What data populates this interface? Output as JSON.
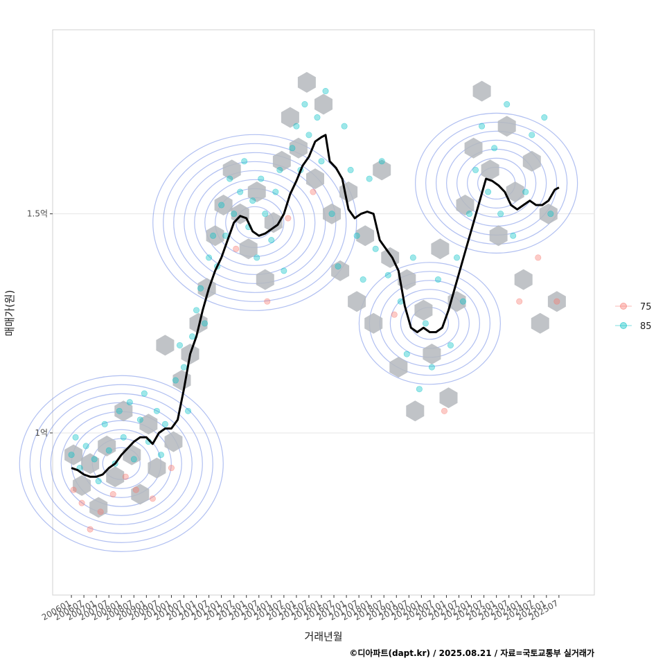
{
  "chart_data": {
    "type": "scatter",
    "xlabel": "거래년월",
    "ylabel": "매매가(원)",
    "caption": "©디아파트(dapt.kr) / 2025.08.21 / 자료=국토교통부 실거래가",
    "x_start": "2006-01",
    "x_end": "2025-07",
    "xlim": [
      "2005-04",
      "2026-12"
    ],
    "ylim": [
      0.63,
      1.92
    ],
    "y_unit": "억",
    "y_ticks": [
      {
        "value": 1.0,
        "label": "1억"
      },
      {
        "value": 1.5,
        "label": "1.5억"
      }
    ],
    "x_ticks": [
      "200601",
      "200607",
      "200701",
      "200707",
      "200801",
      "200807",
      "200901",
      "200907",
      "201001",
      "201007",
      "201101",
      "201107",
      "201201",
      "201207",
      "201301",
      "201307",
      "201401",
      "201407",
      "201501",
      "201507",
      "201601",
      "201607",
      "201701",
      "201707",
      "201801",
      "201807",
      "201901",
      "201907",
      "202001",
      "202007",
      "202101",
      "202107",
      "202201",
      "202207",
      "202301",
      "202307",
      "202401",
      "202407",
      "202501",
      "202507"
    ],
    "grid": true,
    "legend_position": "right",
    "legend": [
      {
        "name": "75",
        "color": "#F8766D"
      },
      {
        "name": "85",
        "color": "#00BFC4"
      }
    ],
    "colors": {
      "hexbin": "#b5b9bd",
      "contour": "#6f8be6",
      "trend_line": "#000000",
      "panel_border": "#d0d0d0",
      "grid": "#e6e6e6"
    },
    "trend_line": [
      [
        "2006-01",
        0.92
      ],
      [
        "2006-04",
        0.915
      ],
      [
        "2006-07",
        0.905
      ],
      [
        "2006-10",
        0.9
      ],
      [
        "2007-01",
        0.9
      ],
      [
        "2007-04",
        0.905
      ],
      [
        "2007-07",
        0.92
      ],
      [
        "2007-10",
        0.93
      ],
      [
        "2008-01",
        0.95
      ],
      [
        "2008-04",
        0.965
      ],
      [
        "2008-07",
        0.98
      ],
      [
        "2008-10",
        0.99
      ],
      [
        "2009-01",
        0.99
      ],
      [
        "2009-04",
        0.975
      ],
      [
        "2009-07",
        1.0
      ],
      [
        "2009-10",
        1.01
      ],
      [
        "2010-01",
        1.01
      ],
      [
        "2010-04",
        1.03
      ],
      [
        "2010-07",
        1.1
      ],
      [
        "2010-10",
        1.18
      ],
      [
        "2011-01",
        1.22
      ],
      [
        "2011-04",
        1.28
      ],
      [
        "2011-07",
        1.33
      ],
      [
        "2011-10",
        1.37
      ],
      [
        "2012-01",
        1.4
      ],
      [
        "2012-04",
        1.44
      ],
      [
        "2012-07",
        1.48
      ],
      [
        "2012-10",
        1.495
      ],
      [
        "2013-01",
        1.49
      ],
      [
        "2013-04",
        1.46
      ],
      [
        "2013-07",
        1.45
      ],
      [
        "2013-10",
        1.455
      ],
      [
        "2014-01",
        1.465
      ],
      [
        "2014-04",
        1.475
      ],
      [
        "2014-07",
        1.5
      ],
      [
        "2014-10",
        1.545
      ],
      [
        "2015-01",
        1.575
      ],
      [
        "2015-04",
        1.61
      ],
      [
        "2015-07",
        1.63
      ],
      [
        "2015-10",
        1.665
      ],
      [
        "2016-01",
        1.675
      ],
      [
        "2016-03",
        1.68
      ],
      [
        "2016-05",
        1.62
      ],
      [
        "2016-08",
        1.605
      ],
      [
        "2016-11",
        1.58
      ],
      [
        "2017-02",
        1.51
      ],
      [
        "2017-05",
        1.49
      ],
      [
        "2017-08",
        1.5
      ],
      [
        "2017-11",
        1.505
      ],
      [
        "2018-02",
        1.5
      ],
      [
        "2018-05",
        1.44
      ],
      [
        "2018-08",
        1.42
      ],
      [
        "2018-11",
        1.4
      ],
      [
        "2019-02",
        1.37
      ],
      [
        "2019-05",
        1.29
      ],
      [
        "2019-08",
        1.24
      ],
      [
        "2019-11",
        1.23
      ],
      [
        "2020-02",
        1.24
      ],
      [
        "2020-05",
        1.23
      ],
      [
        "2020-08",
        1.23
      ],
      [
        "2020-11",
        1.24
      ],
      [
        "2021-02",
        1.28
      ],
      [
        "2021-05",
        1.33
      ],
      [
        "2021-08",
        1.38
      ],
      [
        "2021-11",
        1.43
      ],
      [
        "2022-02",
        1.48
      ],
      [
        "2022-05",
        1.53
      ],
      [
        "2022-08",
        1.58
      ],
      [
        "2022-11",
        1.575
      ],
      [
        "2023-02",
        1.565
      ],
      [
        "2023-05",
        1.55
      ],
      [
        "2023-08",
        1.52
      ],
      [
        "2023-11",
        1.51
      ],
      [
        "2024-02",
        1.52
      ],
      [
        "2024-05",
        1.53
      ],
      [
        "2024-08",
        1.52
      ],
      [
        "2024-11",
        1.52
      ],
      [
        "2025-02",
        1.53
      ],
      [
        "2025-05",
        1.555
      ],
      [
        "2025-07",
        1.56
      ]
    ],
    "density_peaks": [
      {
        "x": "2008-01",
        "y": 0.93,
        "level": 9
      },
      {
        "x": "2013-05",
        "y": 1.48,
        "level": 9
      },
      {
        "x": "2020-05",
        "y": 1.25,
        "level": 6
      },
      {
        "x": "2023-01",
        "y": 1.57,
        "level": 7
      }
    ],
    "points": [
      [
        "2006-01",
        0.95,
        "85"
      ],
      [
        "2006-02",
        0.87,
        "75"
      ],
      [
        "2006-03",
        0.99,
        "85"
      ],
      [
        "2006-05",
        0.92,
        "85"
      ],
      [
        "2006-06",
        0.84,
        "75"
      ],
      [
        "2006-08",
        0.97,
        "85"
      ],
      [
        "2006-10",
        0.78,
        "75"
      ],
      [
        "2006-12",
        0.94,
        "85"
      ],
      [
        "2007-02",
        0.89,
        "85"
      ],
      [
        "2007-03",
        0.82,
        "75"
      ],
      [
        "2007-05",
        1.02,
        "85"
      ],
      [
        "2007-07",
        0.96,
        "85"
      ],
      [
        "2007-09",
        0.86,
        "75"
      ],
      [
        "2007-10",
        0.93,
        "85"
      ],
      [
        "2007-12",
        1.05,
        "85"
      ],
      [
        "2008-02",
        0.99,
        "85"
      ],
      [
        "2008-03",
        0.9,
        "75"
      ],
      [
        "2008-05",
        1.07,
        "85"
      ],
      [
        "2008-07",
        0.94,
        "85"
      ],
      [
        "2008-08",
        0.87,
        "75"
      ],
      [
        "2008-10",
        1.03,
        "85"
      ],
      [
        "2008-12",
        1.09,
        "85"
      ],
      [
        "2009-02",
        0.98,
        "85"
      ],
      [
        "2009-04",
        0.85,
        "75"
      ],
      [
        "2009-06",
        1.05,
        "85"
      ],
      [
        "2009-08",
        0.95,
        "85"
      ],
      [
        "2009-10",
        1.02,
        "85"
      ],
      [
        "2010-01",
        0.92,
        "75"
      ],
      [
        "2010-03",
        1.12,
        "85"
      ],
      [
        "2010-05",
        1.2,
        "85"
      ],
      [
        "2010-07",
        1.15,
        "85"
      ],
      [
        "2010-09",
        1.05,
        "85"
      ],
      [
        "2010-11",
        1.22,
        "85"
      ],
      [
        "2011-01",
        1.28,
        "85"
      ],
      [
        "2011-03",
        1.33,
        "85"
      ],
      [
        "2011-05",
        1.25,
        "85"
      ],
      [
        "2011-07",
        1.4,
        "85"
      ],
      [
        "2011-09",
        1.45,
        "85"
      ],
      [
        "2011-11",
        1.38,
        "85"
      ],
      [
        "2012-01",
        1.52,
        "85"
      ],
      [
        "2012-03",
        1.45,
        "85"
      ],
      [
        "2012-05",
        1.58,
        "85"
      ],
      [
        "2012-07",
        1.5,
        "85"
      ],
      [
        "2012-08",
        1.42,
        "75"
      ],
      [
        "2012-10",
        1.55,
        "85"
      ],
      [
        "2012-12",
        1.62,
        "85"
      ],
      [
        "2013-02",
        1.47,
        "85"
      ],
      [
        "2013-04",
        1.53,
        "85"
      ],
      [
        "2013-06",
        1.4,
        "85"
      ],
      [
        "2013-08",
        1.58,
        "85"
      ],
      [
        "2013-10",
        1.5,
        "85"
      ],
      [
        "2013-11",
        1.3,
        "75"
      ],
      [
        "2014-01",
        1.44,
        "85"
      ],
      [
        "2014-03",
        1.55,
        "85"
      ],
      [
        "2014-05",
        1.6,
        "85"
      ],
      [
        "2014-07",
        1.37,
        "85"
      ],
      [
        "2014-09",
        1.49,
        "75"
      ],
      [
        "2014-11",
        1.65,
        "85"
      ],
      [
        "2015-01",
        1.7,
        "85"
      ],
      [
        "2015-03",
        1.6,
        "85"
      ],
      [
        "2015-05",
        1.75,
        "85"
      ],
      [
        "2015-07",
        1.68,
        "85"
      ],
      [
        "2015-09",
        1.55,
        "75"
      ],
      [
        "2015-11",
        1.72,
        "85"
      ],
      [
        "2016-01",
        1.62,
        "85"
      ],
      [
        "2016-03",
        1.78,
        "85"
      ],
      [
        "2016-06",
        1.5,
        "85"
      ],
      [
        "2016-09",
        1.38,
        "85"
      ],
      [
        "2016-12",
        1.7,
        "85"
      ],
      [
        "2017-03",
        1.6,
        "85"
      ],
      [
        "2017-06",
        1.45,
        "85"
      ],
      [
        "2017-09",
        1.35,
        "85"
      ],
      [
        "2017-12",
        1.58,
        "85"
      ],
      [
        "2018-03",
        1.42,
        "85"
      ],
      [
        "2018-06",
        1.62,
        "85"
      ],
      [
        "2018-09",
        1.36,
        "85"
      ],
      [
        "2018-12",
        1.27,
        "75"
      ],
      [
        "2019-03",
        1.3,
        "85"
      ],
      [
        "2019-06",
        1.18,
        "85"
      ],
      [
        "2019-09",
        1.4,
        "85"
      ],
      [
        "2019-12",
        1.1,
        "85"
      ],
      [
        "2020-03",
        1.25,
        "85"
      ],
      [
        "2020-06",
        1.15,
        "85"
      ],
      [
        "2020-09",
        1.35,
        "85"
      ],
      [
        "2020-12",
        1.05,
        "75"
      ],
      [
        "2021-03",
        1.2,
        "85"
      ],
      [
        "2021-06",
        1.4,
        "85"
      ],
      [
        "2021-09",
        1.3,
        "85"
      ],
      [
        "2021-12",
        1.5,
        "85"
      ],
      [
        "2022-03",
        1.6,
        "85"
      ],
      [
        "2022-06",
        1.7,
        "85"
      ],
      [
        "2022-09",
        1.55,
        "85"
      ],
      [
        "2022-12",
        1.65,
        "85"
      ],
      [
        "2023-03",
        1.5,
        "85"
      ],
      [
        "2023-06",
        1.75,
        "85"
      ],
      [
        "2023-09",
        1.45,
        "85"
      ],
      [
        "2023-12",
        1.3,
        "75"
      ],
      [
        "2024-03",
        1.55,
        "85"
      ],
      [
        "2024-06",
        1.68,
        "85"
      ],
      [
        "2024-09",
        1.4,
        "75"
      ],
      [
        "2024-12",
        1.72,
        "85"
      ],
      [
        "2025-03",
        1.5,
        "85"
      ],
      [
        "2025-06",
        1.3,
        "75"
      ]
    ],
    "hexbins": [
      [
        "2006-02",
        0.95
      ],
      [
        "2006-06",
        0.88
      ],
      [
        "2006-10",
        0.93
      ],
      [
        "2007-02",
        0.83
      ],
      [
        "2007-06",
        0.97
      ],
      [
        "2007-10",
        0.9
      ],
      [
        "2008-02",
        1.05
      ],
      [
        "2008-06",
        0.95
      ],
      [
        "2008-10",
        0.86
      ],
      [
        "2009-02",
        1.02
      ],
      [
        "2009-06",
        0.92
      ],
      [
        "2009-10",
        1.2
      ],
      [
        "2010-02",
        0.98
      ],
      [
        "2010-06",
        1.12
      ],
      [
        "2010-10",
        1.18
      ],
      [
        "2011-02",
        1.25
      ],
      [
        "2011-06",
        1.33
      ],
      [
        "2011-10",
        1.45
      ],
      [
        "2012-02",
        1.52
      ],
      [
        "2012-06",
        1.6
      ],
      [
        "2012-10",
        1.5
      ],
      [
        "2013-02",
        1.42
      ],
      [
        "2013-06",
        1.55
      ],
      [
        "2013-10",
        1.35
      ],
      [
        "2014-02",
        1.48
      ],
      [
        "2014-06",
        1.62
      ],
      [
        "2014-10",
        1.72
      ],
      [
        "2015-02",
        1.65
      ],
      [
        "2015-06",
        1.8
      ],
      [
        "2015-10",
        1.58
      ],
      [
        "2016-02",
        1.75
      ],
      [
        "2016-06",
        1.5
      ],
      [
        "2016-10",
        1.37
      ],
      [
        "2017-02",
        1.55
      ],
      [
        "2017-06",
        1.3
      ],
      [
        "2017-10",
        1.45
      ],
      [
        "2018-02",
        1.25
      ],
      [
        "2018-06",
        1.6
      ],
      [
        "2018-10",
        1.4
      ],
      [
        "2019-02",
        1.15
      ],
      [
        "2019-06",
        1.35
      ],
      [
        "2019-10",
        1.05
      ],
      [
        "2020-02",
        1.28
      ],
      [
        "2020-06",
        1.18
      ],
      [
        "2020-10",
        1.42
      ],
      [
        "2021-02",
        1.08
      ],
      [
        "2021-06",
        1.3
      ],
      [
        "2021-10",
        1.52
      ],
      [
        "2022-02",
        1.65
      ],
      [
        "2022-06",
        1.78
      ],
      [
        "2022-10",
        1.6
      ],
      [
        "2023-02",
        1.45
      ],
      [
        "2023-06",
        1.7
      ],
      [
        "2023-10",
        1.55
      ],
      [
        "2024-02",
        1.35
      ],
      [
        "2024-06",
        1.62
      ],
      [
        "2024-10",
        1.25
      ],
      [
        "2025-02",
        1.5
      ],
      [
        "2025-06",
        1.3
      ]
    ]
  }
}
